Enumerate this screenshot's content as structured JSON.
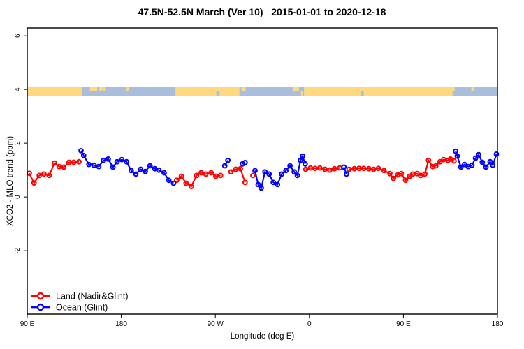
{
  "title": "47.5N-52.5N March (Ver 10)   2015-01-01 to 2020-12-18",
  "colors": {
    "background": "#FFFFFF",
    "frame": "#000000",
    "land_series": "#FF0000",
    "ocean_series": "#0000FF",
    "band_land": "#FFD880",
    "band_ocean": "#A8BEDC"
  },
  "chart_data": {
    "type": "line",
    "title": "47.5N-52.5N March (Ver 10)   2015-01-01 to 2020-12-18",
    "xlabel": "Longitude (deg E)",
    "ylabel": "XCO2 - MLO trend (ppm)",
    "grid": false,
    "legend_position": "bottom-left",
    "x_axis": {
      "range": [
        90,
        540
      ],
      "ticks": [
        {
          "value": 90,
          "label": "90 E"
        },
        {
          "value": 180,
          "label": "180"
        },
        {
          "value": 270,
          "label": "90 W"
        },
        {
          "value": 360,
          "label": "0"
        },
        {
          "value": 450,
          "label": "90 E"
        },
        {
          "value": 540,
          "label": "180"
        }
      ]
    },
    "y_axis": {
      "range": [
        -4.36,
        6.29
      ],
      "ticks": [
        {
          "value": -2,
          "label": "-2"
        },
        {
          "value": 0,
          "label": "0"
        },
        {
          "value": 2,
          "label": "2"
        },
        {
          "value": 4,
          "label": "4"
        },
        {
          "value": 6,
          "label": "6"
        }
      ]
    },
    "map_band": {
      "y_from": 3.77,
      "y_to": 4.1,
      "land_color": "#FFD880",
      "ocean_color": "#A8BEDC",
      "segments": [
        {
          "from": 90,
          "to": 142,
          "type": "land"
        },
        {
          "from": 142,
          "to": 232,
          "type": "ocean"
        },
        {
          "from": 232,
          "to": 293,
          "type": "land"
        },
        {
          "from": 293,
          "to": 355,
          "type": "ocean"
        },
        {
          "from": 355,
          "to": 499,
          "type": "land"
        },
        {
          "from": 499,
          "to": 540,
          "type": "ocean"
        }
      ],
      "patches": [
        {
          "from": 150,
          "to": 157,
          "half": "top",
          "type": "land"
        },
        {
          "from": 159,
          "to": 162,
          "half": "top",
          "type": "land"
        },
        {
          "from": 163,
          "to": 165,
          "half": "top",
          "type": "land"
        },
        {
          "from": 185,
          "to": 187,
          "half": "top",
          "type": "land"
        },
        {
          "from": 271,
          "to": 274,
          "half": "bottom",
          "type": "ocean"
        },
        {
          "from": 295,
          "to": 299,
          "half": "top",
          "type": "land"
        },
        {
          "from": 344,
          "to": 350,
          "half": "top",
          "type": "land"
        },
        {
          "from": 352,
          "to": 354,
          "half": "bottom",
          "type": "land"
        },
        {
          "from": 409,
          "to": 412,
          "half": "bottom",
          "type": "ocean"
        },
        {
          "from": 497,
          "to": 500,
          "half": "bottom",
          "type": "ocean"
        },
        {
          "from": 515,
          "to": 518,
          "half": "top",
          "type": "land"
        }
      ]
    },
    "series": [
      {
        "name": "Land (Nadir&Glint)",
        "color": "#FF0000",
        "runs": [
          [
            [
              92,
              0.88
            ],
            [
              96.5,
              0.52
            ],
            [
              101.5,
              0.8
            ],
            [
              106,
              0.85
            ],
            [
              111,
              0.8
            ],
            [
              116,
              1.26
            ],
            [
              120.5,
              1.13
            ],
            [
              125,
              1.11
            ],
            [
              130,
              1.29
            ],
            [
              134.5,
              1.29
            ],
            [
              139.5,
              1.31
            ]
          ],
          [
            [
              233,
              0.62
            ],
            [
              237.5,
              0.77
            ],
            [
              242,
              0.51
            ],
            [
              247,
              0.39
            ],
            [
              252,
              0.8
            ],
            [
              256.5,
              0.9
            ],
            [
              261,
              0.85
            ],
            [
              266,
              0.9
            ],
            [
              270.5,
              0.77
            ],
            [
              275,
              0.8
            ]
          ],
          [
            [
              285,
              0.93
            ],
            [
              289.5,
              1.03
            ],
            [
              294,
              1.05
            ],
            [
              298.5,
              0.54
            ]
          ],
          [
            [
              306,
              0.8
            ]
          ],
          [
            [
              356.5,
              1.03
            ],
            [
              361,
              1.08
            ],
            [
              365.5,
              1.06
            ],
            [
              370,
              1.08
            ],
            [
              375,
              1.03
            ],
            [
              379.5,
              1.0
            ],
            [
              384,
              1.05
            ],
            [
              389,
              1.08
            ]
          ],
          [
            [
              398,
              1.03
            ],
            [
              403,
              1.05
            ],
            [
              407.5,
              1.06
            ],
            [
              412,
              1.06
            ],
            [
              417,
              1.05
            ],
            [
              421.5,
              1.03
            ],
            [
              426,
              1.06
            ],
            [
              431.5,
              0.98
            ],
            [
              437,
              0.87
            ],
            [
              440.5,
              0.69
            ],
            [
              444.5,
              0.82
            ],
            [
              448,
              0.87
            ],
            [
              452,
              0.62
            ],
            [
              456,
              0.77
            ],
            [
              459,
              0.85
            ],
            [
              463,
              0.87
            ],
            [
              466.5,
              0.8
            ],
            [
              470.5,
              0.85
            ],
            [
              474,
              1.36
            ],
            [
              478,
              1.13
            ],
            [
              481,
              1.16
            ],
            [
              485,
              1.31
            ],
            [
              488.5,
              1.39
            ],
            [
              492.5,
              1.36
            ],
            [
              495,
              1.41
            ],
            [
              498.5,
              1.34
            ]
          ]
        ]
      },
      {
        "name": "Ocean (Glint)",
        "color": "#0000FF",
        "runs": [
          [
            [
              141.5,
              1.72
            ],
            [
              144,
              1.54
            ],
            [
              149,
              1.21
            ],
            [
              154,
              1.18
            ],
            [
              158.5,
              1.13
            ],
            [
              163,
              1.36
            ],
            [
              167.5,
              1.41
            ],
            [
              172,
              1.11
            ],
            [
              176,
              1.31
            ],
            [
              180.5,
              1.39
            ],
            [
              185,
              1.31
            ],
            [
              189.5,
              0.98
            ],
            [
              194,
              0.85
            ],
            [
              198.5,
              1.03
            ],
            [
              203,
              0.95
            ],
            [
              207.5,
              1.16
            ],
            [
              212,
              1.05
            ],
            [
              216,
              1.0
            ],
            [
              221,
              0.9
            ],
            [
              225.5,
              0.62
            ],
            [
              230,
              0.51
            ]
          ],
          [
            [
              279,
              1.16
            ],
            [
              282,
              1.36
            ]
          ],
          [
            [
              296,
              1.23
            ],
            [
              298.5,
              1.28
            ]
          ],
          [
            [
              308,
              0.98
            ],
            [
              311,
              0.46
            ],
            [
              314,
              0.33
            ],
            [
              317.5,
              0.93
            ],
            [
              321.5,
              0.85
            ],
            [
              325.5,
              0.54
            ],
            [
              329.5,
              0.46
            ],
            [
              333.5,
              0.85
            ],
            [
              337.5,
              0.98
            ],
            [
              341.5,
              1.16
            ],
            [
              345.5,
              0.93
            ],
            [
              348.5,
              0.8
            ],
            [
              351.5,
              1.36
            ],
            [
              353.5,
              1.52
            ],
            [
              356,
              1.23
            ]
          ],
          [
            [
              393,
              1.11
            ],
            [
              395.5,
              0.85
            ]
          ],
          [
            [
              500,
              1.7
            ],
            [
              501.5,
              1.52
            ],
            [
              505,
              1.11
            ],
            [
              508.5,
              1.21
            ],
            [
              512,
              1.13
            ],
            [
              515.5,
              1.18
            ],
            [
              519,
              1.44
            ],
            [
              522,
              1.57
            ],
            [
              525.5,
              1.29
            ],
            [
              529,
              1.11
            ],
            [
              533,
              1.31
            ],
            [
              535.5,
              1.18
            ],
            [
              539,
              1.59
            ]
          ]
        ]
      }
    ]
  }
}
